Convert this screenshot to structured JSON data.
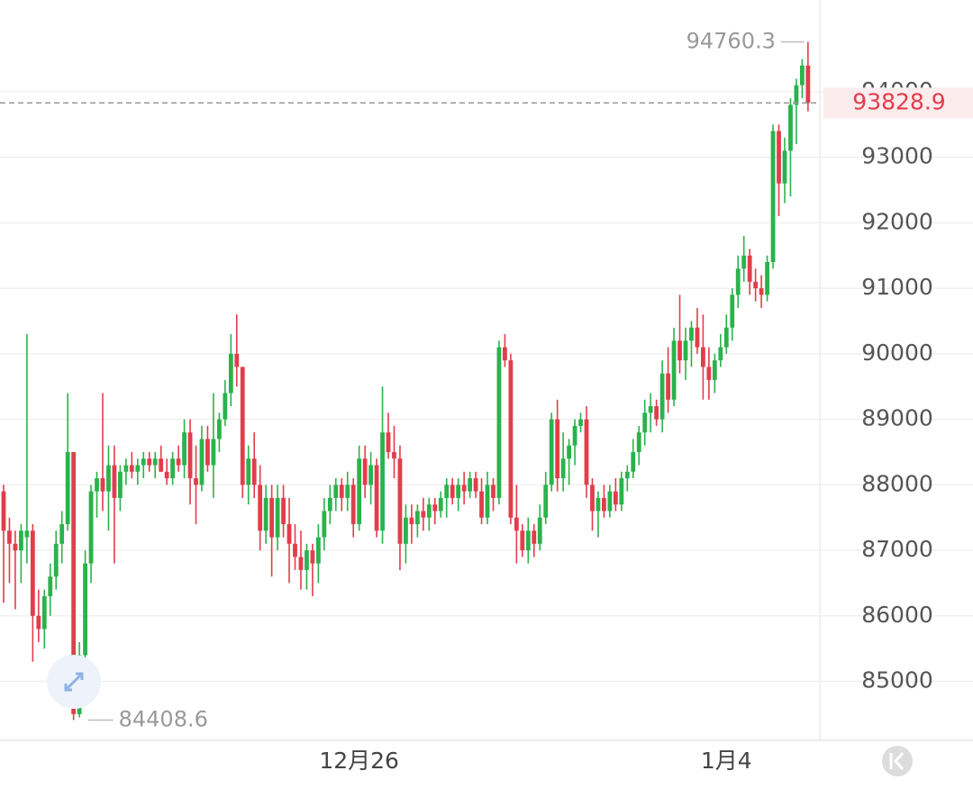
{
  "chart_data": {
    "type": "candlestick",
    "up_color": "#2bb24c",
    "down_color": "#e23d4b",
    "grid": true,
    "ylim": [
      84100,
      95400
    ],
    "yticks": [
      85000,
      86000,
      87000,
      88000,
      89000,
      90000,
      91000,
      92000,
      93000,
      94000
    ],
    "categories": [
      null,
      null,
      null,
      null,
      null,
      null,
      null,
      null,
      null,
      null,
      null,
      null,
      null,
      null,
      null,
      null,
      null,
      null,
      null,
      null,
      null,
      null,
      null,
      null,
      null,
      null,
      null,
      null,
      null,
      null,
      null,
      null,
      null,
      null,
      null,
      null,
      null,
      null,
      null,
      null,
      null,
      null,
      null,
      null,
      null,
      null,
      null,
      null,
      null,
      null,
      null,
      null,
      null,
      null,
      null,
      null,
      null,
      null,
      null,
      null,
      null,
      "12月26",
      null,
      null,
      null,
      null,
      null,
      null,
      null,
      null,
      null,
      null,
      null,
      null,
      null,
      null,
      null,
      null,
      null,
      null,
      null,
      null,
      null,
      null,
      null,
      null,
      null,
      null,
      null,
      null,
      null,
      null,
      null,
      null,
      null,
      null,
      null,
      null,
      null,
      null,
      null,
      null,
      null,
      null,
      null,
      null,
      null,
      null,
      null,
      null,
      null,
      null,
      null,
      null,
      null,
      null,
      null,
      null,
      null,
      null,
      null,
      null,
      null,
      null,
      "1月4",
      null,
      null,
      null,
      null,
      null,
      null,
      null,
      null,
      null,
      null,
      null,
      null,
      null,
      null
    ],
    "ohlc": [
      [
        87900,
        88000,
        86200,
        87300
      ],
      [
        87300,
        87500,
        86500,
        87100
      ],
      [
        87100,
        87300,
        86100,
        87000
      ],
      [
        87000,
        87400,
        86500,
        87300
      ],
      [
        87200,
        90300,
        86800,
        87300
      ],
      [
        87300,
        87400,
        85300,
        86000
      ],
      [
        86000,
        86400,
        85600,
        85800
      ],
      [
        85800,
        86400,
        85500,
        86300
      ],
      [
        86300,
        86800,
        86000,
        86600
      ],
      [
        86600,
        87300,
        86400,
        87100
      ],
      [
        87100,
        87600,
        86800,
        87400
      ],
      [
        87400,
        89400,
        87300,
        88500
      ],
      [
        88500,
        88500,
        84408.6,
        84500
      ],
      [
        84500,
        85600,
        84450,
        85400
      ],
      [
        85400,
        87000,
        85000,
        86800
      ],
      [
        86800,
        88000,
        86500,
        87900
      ],
      [
        87900,
        88200,
        87500,
        88100
      ],
      [
        88100,
        89400,
        87600,
        87900
      ],
      [
        87900,
        88600,
        87300,
        88300
      ],
      [
        88300,
        88600,
        86800,
        87800
      ],
      [
        87800,
        88300,
        87600,
        88200
      ],
      [
        88200,
        88400,
        88000,
        88300
      ],
      [
        88300,
        88500,
        88100,
        88200
      ],
      [
        88200,
        88400,
        88000,
        88300
      ],
      [
        88300,
        88500,
        88100,
        88400
      ],
      [
        88400,
        88500,
        88200,
        88300
      ],
      [
        88300,
        88500,
        88100,
        88400
      ],
      [
        88400,
        88600,
        88200,
        88200
      ],
      [
        88200,
        88400,
        88000,
        88100
      ],
      [
        88100,
        88500,
        88000,
        88400
      ],
      [
        88400,
        88600,
        88200,
        88300
      ],
      [
        88300,
        89000,
        88100,
        88800
      ],
      [
        88800,
        89000,
        87700,
        88100
      ],
      [
        88100,
        88600,
        87400,
        88000
      ],
      [
        88000,
        88900,
        87900,
        88700
      ],
      [
        88700,
        88900,
        88200,
        88300
      ],
      [
        88300,
        89400,
        87800,
        88700
      ],
      [
        88700,
        89100,
        88500,
        89000
      ],
      [
        89000,
        89600,
        88900,
        89400
      ],
      [
        89400,
        90300,
        89200,
        90000
      ],
      [
        90000,
        90600,
        89500,
        89800
      ],
      [
        89800,
        89800,
        87800,
        88000
      ],
      [
        88000,
        88600,
        87700,
        88400
      ],
      [
        88400,
        88800,
        87800,
        88000
      ],
      [
        88000,
        88300,
        87000,
        87300
      ],
      [
        87300,
        88000,
        87100,
        87800
      ],
      [
        87800,
        88000,
        86600,
        87200
      ],
      [
        87200,
        88000,
        87000,
        87800
      ],
      [
        87800,
        88000,
        87200,
        87400
      ],
      [
        87400,
        87800,
        86500,
        87100
      ],
      [
        87100,
        87400,
        86700,
        86900
      ],
      [
        86900,
        87300,
        86400,
        86700
      ],
      [
        86700,
        87100,
        86400,
        87000
      ],
      [
        87000,
        87100,
        86300,
        86800
      ],
      [
        86800,
        87400,
        86500,
        87200
      ],
      [
        87200,
        87800,
        87000,
        87600
      ],
      [
        87600,
        88000,
        87400,
        87800
      ],
      [
        87800,
        88100,
        87600,
        88000
      ],
      [
        88000,
        88100,
        87600,
        87800
      ],
      [
        87800,
        88200,
        87600,
        88000
      ],
      [
        88000,
        88100,
        87200,
        87400
      ],
      [
        87400,
        88600,
        87300,
        88400
      ],
      [
        88400,
        88600,
        87800,
        88000
      ],
      [
        88000,
        88500,
        87700,
        88300
      ],
      [
        88300,
        88400,
        87200,
        87300
      ],
      [
        87300,
        89500,
        87100,
        88800
      ],
      [
        88800,
        89100,
        88400,
        88500
      ],
      [
        88500,
        88900,
        88100,
        88400
      ],
      [
        88400,
        88600,
        86700,
        87100
      ],
      [
        87100,
        87700,
        86800,
        87500
      ],
      [
        87500,
        87700,
        87100,
        87400
      ],
      [
        87400,
        87700,
        87200,
        87600
      ],
      [
        87600,
        87800,
        87300,
        87500
      ],
      [
        87500,
        87800,
        87300,
        87700
      ],
      [
        87700,
        87800,
        87400,
        87600
      ],
      [
        87600,
        87900,
        87500,
        87800
      ],
      [
        87800,
        88100,
        87500,
        88000
      ],
      [
        88000,
        88100,
        87700,
        87800
      ],
      [
        87800,
        88100,
        87600,
        88000
      ],
      [
        88000,
        88200,
        87700,
        87900
      ],
      [
        87900,
        88200,
        87800,
        88100
      ],
      [
        88100,
        88200,
        87800,
        87900
      ],
      [
        87900,
        88100,
        87400,
        87500
      ],
      [
        87500,
        88200,
        87400,
        88000
      ],
      [
        88000,
        88100,
        87600,
        87800
      ],
      [
        87800,
        90200,
        87700,
        90100
      ],
      [
        90100,
        90300,
        89800,
        89900
      ],
      [
        89900,
        90000,
        87400,
        87500
      ],
      [
        87500,
        88000,
        86800,
        87300
      ],
      [
        87300,
        87400,
        86900,
        87000
      ],
      [
        87000,
        87500,
        86800,
        87300
      ],
      [
        87300,
        87400,
        86900,
        87100
      ],
      [
        87100,
        87700,
        87000,
        87500
      ],
      [
        87500,
        88200,
        87400,
        88000
      ],
      [
        88000,
        89100,
        87900,
        89000
      ],
      [
        89000,
        89300,
        87900,
        88100
      ],
      [
        88100,
        88800,
        87900,
        88400
      ],
      [
        88400,
        88700,
        88000,
        88600
      ],
      [
        88600,
        89000,
        88300,
        88900
      ],
      [
        88900,
        89100,
        88800,
        89000
      ],
      [
        89000,
        89200,
        87800,
        88000
      ],
      [
        88000,
        88100,
        87300,
        87600
      ],
      [
        87600,
        87900,
        87200,
        87800
      ],
      [
        87800,
        88000,
        87500,
        87600
      ],
      [
        87600,
        88000,
        87500,
        87900
      ],
      [
        87900,
        88100,
        87600,
        87700
      ],
      [
        87700,
        88200,
        87600,
        88100
      ],
      [
        88100,
        88300,
        87900,
        88200
      ],
      [
        88200,
        88700,
        88100,
        88500
      ],
      [
        88500,
        88900,
        88300,
        88800
      ],
      [
        88800,
        89300,
        88600,
        89100
      ],
      [
        89100,
        89400,
        88800,
        89200
      ],
      [
        89200,
        89300,
        88900,
        89000
      ],
      [
        89000,
        89900,
        88800,
        89700
      ],
      [
        89700,
        90100,
        89100,
        89300
      ],
      [
        89300,
        90400,
        89200,
        90200
      ],
      [
        90200,
        90900,
        89700,
        89900
      ],
      [
        89900,
        90400,
        89600,
        90200
      ],
      [
        90200,
        90500,
        89800,
        90400
      ],
      [
        90400,
        90700,
        90000,
        90100
      ],
      [
        90100,
        90600,
        89300,
        89800
      ],
      [
        89800,
        90100,
        89300,
        89600
      ],
      [
        89600,
        90000,
        89400,
        89900
      ],
      [
        89900,
        90300,
        89800,
        90100
      ],
      [
        90100,
        90600,
        90000,
        90400
      ],
      [
        90400,
        91000,
        90200,
        90900
      ],
      [
        90900,
        91500,
        90700,
        91300
      ],
      [
        91300,
        91800,
        91100,
        91500
      ],
      [
        91500,
        91600,
        90900,
        91100
      ],
      [
        91100,
        91300,
        90800,
        91000
      ],
      [
        91000,
        91200,
        90700,
        90900
      ],
      [
        90900,
        91500,
        90800,
        91400
      ],
      [
        91400,
        93500,
        91300,
        93400
      ],
      [
        93400,
        93500,
        92100,
        92600
      ],
      [
        92600,
        93300,
        92300,
        93100
      ],
      [
        93100,
        93900,
        92400,
        93800
      ],
      [
        93800,
        94200,
        93200,
        94100
      ],
      [
        94100,
        94500,
        93900,
        94400
      ],
      [
        94400,
        94760.3,
        93700,
        93828.9
      ]
    ]
  }
}
